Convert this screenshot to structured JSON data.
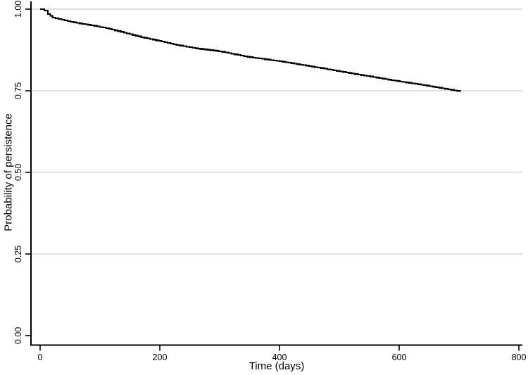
{
  "figure": {
    "background": "#ffffff"
  },
  "chart_data": {
    "type": "line",
    "subtype": "kaplan-meier-step-curve",
    "title": "",
    "xlabel": "Time (days)",
    "ylabel": "Probability of persistence",
    "xlim": [
      0,
      800
    ],
    "ylim": [
      0,
      1
    ],
    "grid": "horizontal",
    "legend_position": "none",
    "x_ticks": [
      {
        "value": 0,
        "label": "0"
      },
      {
        "value": 200,
        "label": "200"
      },
      {
        "value": 400,
        "label": "400"
      },
      {
        "value": 600,
        "label": "600"
      },
      {
        "value": 800,
        "label": "800"
      }
    ],
    "y_ticks": [
      {
        "value": 0.0,
        "label": "0.00",
        "gridline": false
      },
      {
        "value": 0.25,
        "label": "0.25",
        "gridline": true
      },
      {
        "value": 0.5,
        "label": "0.50",
        "gridline": true
      },
      {
        "value": 0.75,
        "label": "0.75",
        "gridline": true
      },
      {
        "value": 1.0,
        "label": "1.00",
        "gridline": true
      }
    ],
    "series": [
      {
        "name": "Probability of persistence",
        "style": "step",
        "color": "#000000",
        "points": [
          [
            0,
            1.0
          ],
          [
            7,
            0.996
          ],
          [
            13,
            0.985
          ],
          [
            21,
            0.974
          ],
          [
            51,
            0.961
          ],
          [
            80,
            0.952
          ],
          [
            110,
            0.942
          ],
          [
            140,
            0.928
          ],
          [
            169,
            0.914
          ],
          [
            198,
            0.903
          ],
          [
            228,
            0.89
          ],
          [
            260,
            0.88
          ],
          [
            299,
            0.871
          ],
          [
            346,
            0.854
          ],
          [
            405,
            0.839
          ],
          [
            464,
            0.821
          ],
          [
            511,
            0.806
          ],
          [
            582,
            0.784
          ],
          [
            641,
            0.767
          ],
          [
            702,
            0.748
          ]
        ]
      }
    ],
    "colors": {
      "axis": "#000000",
      "gridline": "#d5d5d5",
      "curve": "#000000",
      "text": "#000000"
    }
  }
}
